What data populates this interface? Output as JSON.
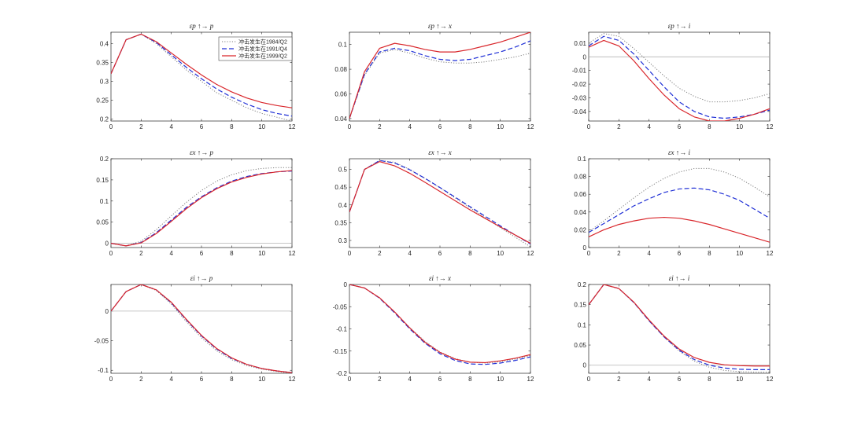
{
  "colors": {
    "s1984": "#7f7f7f",
    "s1991": "#1f2fd6",
    "s1999": "#d9262b",
    "zero_line": "#b4b4b4",
    "axis": "#262626"
  },
  "legend": {
    "placement": "top-right of first panel",
    "entries": [
      {
        "label": "冲击发生在1984/Q2",
        "style": "dotted",
        "color": "#7f7f7f"
      },
      {
        "label": "冲击发生在1991/Q4",
        "style": "dashed",
        "color": "#1f2fd6"
      },
      {
        "label": "冲击发生在1999/Q2",
        "style": "solid",
        "color": "#d9262b"
      }
    ]
  },
  "chart_data": [
    {
      "type": "line",
      "title": "εp ↑→ p",
      "xlim": [
        0,
        12
      ],
      "ylim": [
        0.195,
        0.43
      ],
      "xticks": [
        0,
        2,
        4,
        6,
        8,
        10,
        12
      ],
      "yticks": [
        0.2,
        0.25,
        0.3,
        0.35,
        0.4
      ],
      "ytick_labels": [
        "0.2",
        "0.25",
        "0.3",
        "0.35",
        "0.4"
      ],
      "zero_line": false,
      "x": [
        0,
        1,
        2,
        3,
        4,
        5,
        6,
        7,
        8,
        9,
        10,
        11,
        12
      ],
      "series": [
        {
          "name": "冲击发生在1984/Q2",
          "values": [
            0.32,
            0.41,
            0.425,
            0.4,
            0.365,
            0.33,
            0.3,
            0.27,
            0.25,
            0.23,
            0.215,
            0.205,
            0.195
          ]
        },
        {
          "name": "冲击发生在1991/Q4",
          "values": [
            0.32,
            0.41,
            0.425,
            0.403,
            0.37,
            0.337,
            0.307,
            0.28,
            0.258,
            0.24,
            0.225,
            0.215,
            0.208
          ]
        },
        {
          "name": "冲击发生在1999/Q2",
          "values": [
            0.32,
            0.41,
            0.425,
            0.405,
            0.375,
            0.345,
            0.317,
            0.292,
            0.272,
            0.256,
            0.244,
            0.236,
            0.23
          ]
        }
      ]
    },
    {
      "type": "line",
      "title": "εp ↑→ x",
      "xlim": [
        0,
        12
      ],
      "ylim": [
        0.038,
        0.11
      ],
      "xticks": [
        0,
        2,
        4,
        6,
        8,
        10,
        12
      ],
      "yticks": [
        0.04,
        0.06,
        0.08,
        0.1
      ],
      "ytick_labels": [
        "0.04",
        "0.06",
        "0.08",
        "0.1"
      ],
      "zero_line": false,
      "x": [
        0,
        1,
        2,
        3,
        4,
        5,
        6,
        7,
        8,
        9,
        10,
        11,
        12
      ],
      "series": [
        {
          "name": "冲击发生在1984/Q2",
          "values": [
            0.04,
            0.075,
            0.093,
            0.096,
            0.093,
            0.089,
            0.086,
            0.085,
            0.085,
            0.086,
            0.088,
            0.09,
            0.093
          ]
        },
        {
          "name": "冲击发生在1991/Q4",
          "values": [
            0.04,
            0.076,
            0.094,
            0.097,
            0.095,
            0.091,
            0.088,
            0.087,
            0.088,
            0.091,
            0.094,
            0.098,
            0.103
          ]
        },
        {
          "name": "冲击发生在1999/Q2",
          "values": [
            0.04,
            0.078,
            0.097,
            0.101,
            0.099,
            0.096,
            0.094,
            0.094,
            0.096,
            0.099,
            0.102,
            0.106,
            0.11
          ]
        }
      ]
    },
    {
      "type": "line",
      "title": "εp ↑→ i",
      "xlim": [
        0,
        12
      ],
      "ylim": [
        -0.047,
        0.018
      ],
      "xticks": [
        0,
        2,
        4,
        6,
        8,
        10,
        12
      ],
      "yticks": [
        -0.04,
        -0.03,
        -0.02,
        -0.01,
        0,
        0.01
      ],
      "ytick_labels": [
        "-0.04",
        "-0.03",
        "-0.02",
        "-0.01",
        "0",
        "0.01"
      ],
      "zero_line": true,
      "x": [
        0,
        1,
        2,
        3,
        4,
        5,
        6,
        7,
        8,
        9,
        10,
        11,
        12
      ],
      "series": [
        {
          "name": "冲击发生在1984/Q2",
          "values": [
            0.01,
            0.017,
            0.015,
            0.006,
            -0.004,
            -0.014,
            -0.023,
            -0.029,
            -0.033,
            -0.033,
            -0.032,
            -0.03,
            -0.027
          ]
        },
        {
          "name": "冲击发生在1991/Q4",
          "values": [
            0.008,
            0.015,
            0.012,
            0.002,
            -0.01,
            -0.022,
            -0.033,
            -0.04,
            -0.044,
            -0.045,
            -0.044,
            -0.042,
            -0.039
          ]
        },
        {
          "name": "冲击发生在1999/Q2",
          "values": [
            0.007,
            0.012,
            0.008,
            -0.003,
            -0.016,
            -0.028,
            -0.038,
            -0.044,
            -0.047,
            -0.047,
            -0.045,
            -0.042,
            -0.038
          ]
        }
      ]
    },
    {
      "type": "line",
      "title": "εx ↑→ p",
      "xlim": [
        0,
        12
      ],
      "ylim": [
        -0.01,
        0.2
      ],
      "xticks": [
        0,
        2,
        4,
        6,
        8,
        10,
        12
      ],
      "yticks": [
        0,
        0.05,
        0.1,
        0.15,
        0.2
      ],
      "ytick_labels": [
        "0",
        "0.05",
        "0.1",
        "0.15",
        "0.2"
      ],
      "zero_line": true,
      "x": [
        0,
        1,
        2,
        3,
        4,
        5,
        6,
        7,
        8,
        9,
        10,
        11,
        12
      ],
      "series": [
        {
          "name": "冲击发生在1984/Q2",
          "values": [
            0,
            -0.006,
            0.005,
            0.032,
            0.065,
            0.097,
            0.125,
            0.147,
            0.162,
            0.172,
            0.177,
            0.179,
            0.179
          ]
        },
        {
          "name": "冲击发生在1991/Q4",
          "values": [
            0,
            -0.006,
            0.002,
            0.025,
            0.055,
            0.085,
            0.11,
            0.131,
            0.147,
            0.158,
            0.165,
            0.169,
            0.171
          ]
        },
        {
          "name": "冲击发生在1999/Q2",
          "values": [
            0,
            -0.006,
            0.001,
            0.023,
            0.052,
            0.082,
            0.108,
            0.129,
            0.145,
            0.156,
            0.164,
            0.169,
            0.172
          ]
        }
      ]
    },
    {
      "type": "line",
      "title": "εx ↑→ x",
      "xlim": [
        0,
        12
      ],
      "ylim": [
        0.28,
        0.53
      ],
      "xticks": [
        0,
        2,
        4,
        6,
        8,
        10,
        12
      ],
      "yticks": [
        0.3,
        0.35,
        0.4,
        0.45,
        0.5
      ],
      "ytick_labels": [
        "0.3",
        "0.35",
        "0.4",
        "0.45",
        "0.5"
      ],
      "zero_line": false,
      "x": [
        0,
        1,
        2,
        3,
        4,
        5,
        6,
        7,
        8,
        9,
        10,
        11,
        12
      ],
      "series": [
        {
          "name": "冲击发生在1984/Q2",
          "values": [
            0.38,
            0.5,
            0.525,
            0.52,
            0.5,
            0.475,
            0.448,
            0.42,
            0.392,
            0.364,
            0.336,
            0.309,
            0.282
          ]
        },
        {
          "name": "冲击发生在1991/Q4",
          "values": [
            0.38,
            0.5,
            0.525,
            0.518,
            0.499,
            0.475,
            0.449,
            0.422,
            0.395,
            0.368,
            0.341,
            0.315,
            0.29
          ]
        },
        {
          "name": "冲击发生在1999/Q2",
          "values": [
            0.38,
            0.5,
            0.522,
            0.51,
            0.489,
            0.464,
            0.438,
            0.412,
            0.386,
            0.362,
            0.338,
            0.315,
            0.292
          ]
        }
      ]
    },
    {
      "type": "line",
      "title": "εx ↑→ i",
      "xlim": [
        0,
        12
      ],
      "ylim": [
        0,
        0.1
      ],
      "xticks": [
        0,
        2,
        4,
        6,
        8,
        10,
        12
      ],
      "yticks": [
        0,
        0.02,
        0.04,
        0.06,
        0.08,
        0.1
      ],
      "ytick_labels": [
        "0",
        "0.02",
        "0.04",
        "0.06",
        "0.08",
        "0.1"
      ],
      "zero_line": false,
      "x": [
        0,
        1,
        2,
        3,
        4,
        5,
        6,
        7,
        8,
        9,
        10,
        11,
        12
      ],
      "series": [
        {
          "name": "冲击发生在1984/Q2",
          "values": [
            0.018,
            0.03,
            0.043,
            0.056,
            0.068,
            0.078,
            0.085,
            0.089,
            0.089,
            0.085,
            0.078,
            0.068,
            0.057
          ]
        },
        {
          "name": "冲击发生在1991/Q4",
          "values": [
            0.017,
            0.027,
            0.037,
            0.047,
            0.055,
            0.062,
            0.066,
            0.067,
            0.065,
            0.06,
            0.053,
            0.043,
            0.033
          ]
        },
        {
          "name": "冲击发生在1999/Q2",
          "values": [
            0.012,
            0.02,
            0.026,
            0.03,
            0.033,
            0.034,
            0.033,
            0.03,
            0.026,
            0.021,
            0.016,
            0.011,
            0.006
          ]
        }
      ]
    },
    {
      "type": "line",
      "title": "εi ↑→ p",
      "xlim": [
        0,
        12
      ],
      "ylim": [
        -0.105,
        0.045
      ],
      "xticks": [
        0,
        2,
        4,
        6,
        8,
        10,
        12
      ],
      "yticks": [
        -0.1,
        -0.05,
        0
      ],
      "ytick_labels": [
        "-0.1",
        "-0.05",
        "0"
      ],
      "zero_line": true,
      "x": [
        0,
        1,
        2,
        3,
        4,
        5,
        6,
        7,
        8,
        9,
        10,
        11,
        12
      ],
      "series": [
        {
          "name": "冲击发生在1984/Q2",
          "values": [
            0,
            0.033,
            0.045,
            0.035,
            0.012,
            -0.018,
            -0.045,
            -0.067,
            -0.082,
            -0.092,
            -0.098,
            -0.102,
            -0.105
          ]
        },
        {
          "name": "冲击发生在1991/Q4",
          "values": [
            0,
            0.033,
            0.045,
            0.036,
            0.014,
            -0.015,
            -0.042,
            -0.064,
            -0.08,
            -0.09,
            -0.097,
            -0.101,
            -0.104
          ]
        },
        {
          "name": "冲击发生在1999/Q2",
          "values": [
            0,
            0.033,
            0.045,
            0.036,
            0.015,
            -0.014,
            -0.041,
            -0.063,
            -0.079,
            -0.09,
            -0.097,
            -0.101,
            -0.104
          ]
        }
      ]
    },
    {
      "type": "line",
      "title": "εi ↑→ x",
      "xlim": [
        0,
        12
      ],
      "ylim": [
        -0.2,
        0
      ],
      "xticks": [
        0,
        2,
        4,
        6,
        8,
        10,
        12
      ],
      "yticks": [
        -0.2,
        -0.15,
        -0.1,
        -0.05,
        0
      ],
      "ytick_labels": [
        "-0.2",
        "-0.15",
        "-0.1",
        "-0.05",
        "0"
      ],
      "zero_line": false,
      "x": [
        0,
        1,
        2,
        3,
        4,
        5,
        6,
        7,
        8,
        9,
        10,
        11,
        12
      ],
      "series": [
        {
          "name": "冲击发生在1984/Q2",
          "values": [
            0,
            -0.008,
            -0.03,
            -0.062,
            -0.097,
            -0.128,
            -0.152,
            -0.167,
            -0.175,
            -0.177,
            -0.174,
            -0.168,
            -0.16
          ]
        },
        {
          "name": "冲击发生在1991/Q4",
          "values": [
            0,
            -0.008,
            -0.031,
            -0.064,
            -0.1,
            -0.132,
            -0.156,
            -0.171,
            -0.179,
            -0.18,
            -0.177,
            -0.171,
            -0.163
          ]
        },
        {
          "name": "冲击发生在1999/Q2",
          "values": [
            0,
            -0.008,
            -0.03,
            -0.062,
            -0.098,
            -0.13,
            -0.153,
            -0.168,
            -0.175,
            -0.176,
            -0.172,
            -0.166,
            -0.158
          ]
        }
      ]
    },
    {
      "type": "line",
      "title": "εi ↑→ i",
      "xlim": [
        0,
        12
      ],
      "ylim": [
        -0.02,
        0.2
      ],
      "xticks": [
        0,
        2,
        4,
        6,
        8,
        10,
        12
      ],
      "yticks": [
        0,
        0.05,
        0.1,
        0.15,
        0.2
      ],
      "ytick_labels": [
        "0",
        "0.05",
        "0.1",
        "0.15",
        "0.2"
      ],
      "zero_line": true,
      "x": [
        0,
        1,
        2,
        3,
        4,
        5,
        6,
        7,
        8,
        9,
        10,
        11,
        12
      ],
      "series": [
        {
          "name": "冲击发生在1984/Q2",
          "values": [
            0.15,
            0.2,
            0.19,
            0.155,
            0.11,
            0.07,
            0.035,
            0.01,
            -0.005,
            -0.013,
            -0.016,
            -0.017,
            -0.017
          ]
        },
        {
          "name": "冲击发生在1991/Q4",
          "values": [
            0.15,
            0.2,
            0.19,
            0.155,
            0.11,
            0.07,
            0.037,
            0.014,
            0,
            -0.007,
            -0.01,
            -0.011,
            -0.011
          ]
        },
        {
          "name": "冲击发生在1999/Q2",
          "values": [
            0.15,
            0.2,
            0.19,
            0.156,
            0.112,
            0.072,
            0.04,
            0.019,
            0.007,
            0.001,
            -0.001,
            -0.002,
            -0.002
          ]
        }
      ]
    }
  ]
}
